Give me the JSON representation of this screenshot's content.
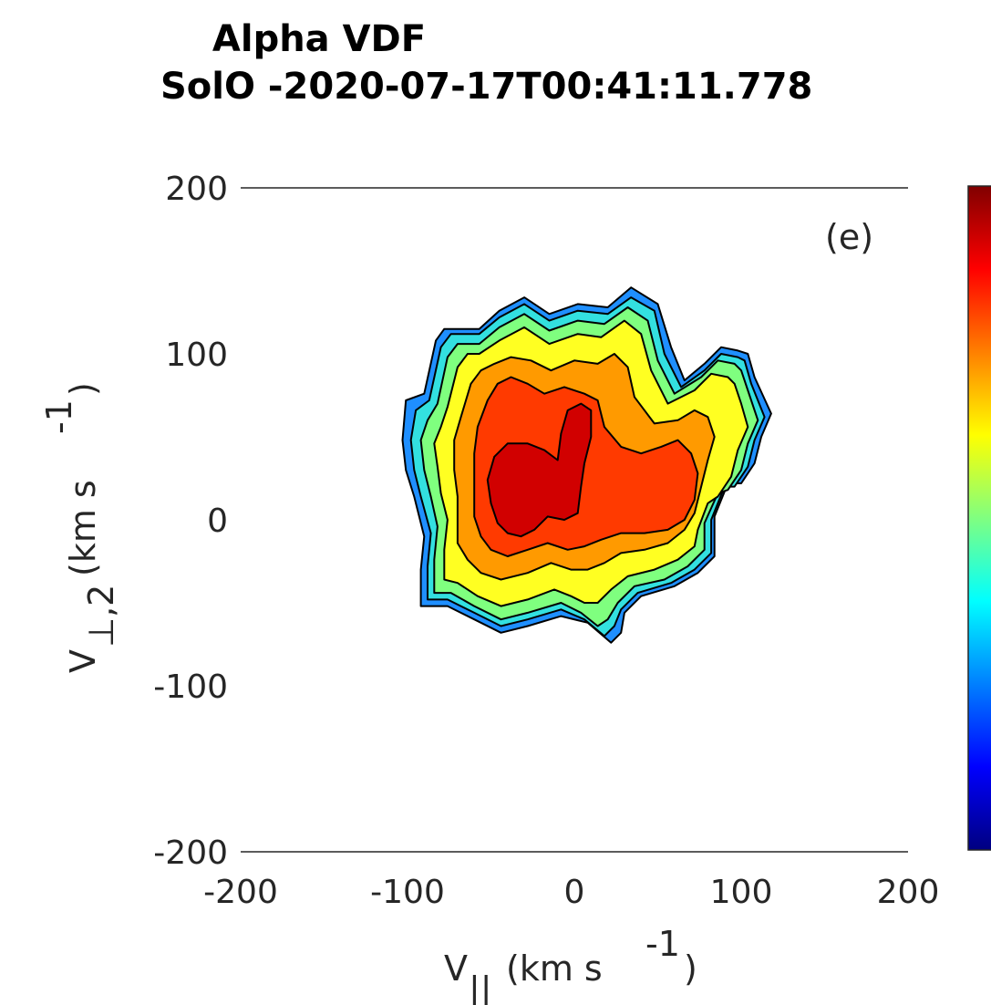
{
  "chart_data": {
    "type": "contour",
    "title": "Alpha VDF",
    "subtitle": "SolO -2020-07-17T00:41:11.778",
    "panel_label": "(e)",
    "xlabel": "V",
    "xlabel_sub": "||",
    "xlabel_unit_pre": "(km s",
    "xlabel_unit_sup": "-1",
    "xlabel_unit_post": ")",
    "ylabel": "V",
    "ylabel_sub": "⊥,2",
    "ylabel_unit_pre": "(km s",
    "ylabel_unit_sup": "-1",
    "ylabel_unit_post": ")",
    "xlim": [
      -200,
      200
    ],
    "ylim": [
      -200,
      200
    ],
    "xticks": [
      "-200",
      "-100",
      "0",
      "100",
      "200"
    ],
    "yticks": [
      "200",
      "100",
      "0",
      "-100",
      "-200"
    ],
    "colormap": "jet",
    "levels": [
      {
        "color": "#1f8fff",
        "contour": [
          [
            -101,
            72
          ],
          [
            -90,
            76
          ],
          [
            -83,
            108
          ],
          [
            -78,
            115
          ],
          [
            -57,
            115
          ],
          [
            -45,
            126
          ],
          [
            -30,
            134
          ],
          [
            -15,
            124
          ],
          [
            2,
            130
          ],
          [
            20,
            128
          ],
          [
            34,
            140
          ],
          [
            50,
            130
          ],
          [
            58,
            104
          ],
          [
            66,
            84
          ],
          [
            78,
            94
          ],
          [
            88,
            104
          ],
          [
            98,
            102
          ],
          [
            104,
            100
          ],
          [
            108,
            86
          ],
          [
            118,
            64
          ],
          [
            112,
            50
          ],
          [
            108,
            34
          ],
          [
            100,
            22
          ],
          [
            92,
            22
          ],
          [
            84,
            2
          ],
          [
            84,
            -22
          ],
          [
            74,
            -32
          ],
          [
            60,
            -40
          ],
          [
            40,
            -46
          ],
          [
            30,
            -56
          ],
          [
            28,
            -68
          ],
          [
            22,
            -74
          ],
          [
            8,
            -62
          ],
          [
            -8,
            -58
          ],
          [
            -28,
            -64
          ],
          [
            -44,
            -68
          ],
          [
            -60,
            -60
          ],
          [
            -76,
            -52
          ],
          [
            -92,
            -52
          ],
          [
            -92,
            -30
          ],
          [
            -90,
            -10
          ],
          [
            -96,
            14
          ],
          [
            -101,
            30
          ],
          [
            -103,
            48
          ]
        ]
      },
      {
        "color": "#33e0e0",
        "contour": [
          [
            -95,
            66
          ],
          [
            -87,
            72
          ],
          [
            -80,
            104
          ],
          [
            -74,
            112
          ],
          [
            -57,
            112
          ],
          [
            -45,
            122
          ],
          [
            -30,
            130
          ],
          [
            -15,
            120
          ],
          [
            2,
            126
          ],
          [
            20,
            124
          ],
          [
            34,
            134
          ],
          [
            48,
            126
          ],
          [
            54,
            100
          ],
          [
            64,
            80
          ],
          [
            78,
            90
          ],
          [
            88,
            100
          ],
          [
            98,
            98
          ],
          [
            102,
            96
          ],
          [
            106,
            82
          ],
          [
            114,
            62
          ],
          [
            108,
            48
          ],
          [
            104,
            32
          ],
          [
            96,
            20
          ],
          [
            90,
            20
          ],
          [
            82,
            0
          ],
          [
            82,
            -20
          ],
          [
            72,
            -30
          ],
          [
            58,
            -38
          ],
          [
            38,
            -44
          ],
          [
            28,
            -54
          ],
          [
            24,
            -64
          ],
          [
            18,
            -70
          ],
          [
            6,
            -60
          ],
          [
            -8,
            -54
          ],
          [
            -28,
            -60
          ],
          [
            -44,
            -64
          ],
          [
            -60,
            -56
          ],
          [
            -76,
            -48
          ],
          [
            -88,
            -48
          ],
          [
            -88,
            -28
          ],
          [
            -86,
            -8
          ],
          [
            -92,
            14
          ],
          [
            -96,
            30
          ],
          [
            -98,
            48
          ]
        ]
      },
      {
        "color": "#7fff7f",
        "contour": [
          [
            -88,
            60
          ],
          [
            -82,
            70
          ],
          [
            -76,
            98
          ],
          [
            -70,
            106
          ],
          [
            -57,
            106
          ],
          [
            -45,
            116
          ],
          [
            -30,
            124
          ],
          [
            -15,
            114
          ],
          [
            2,
            120
          ],
          [
            18,
            118
          ],
          [
            32,
            128
          ],
          [
            44,
            120
          ],
          [
            50,
            96
          ],
          [
            60,
            76
          ],
          [
            76,
            86
          ],
          [
            86,
            96
          ],
          [
            96,
            94
          ],
          [
            100,
            90
          ],
          [
            104,
            78
          ],
          [
            110,
            60
          ],
          [
            104,
            46
          ],
          [
            100,
            30
          ],
          [
            92,
            18
          ],
          [
            86,
            16
          ],
          [
            78,
            -2
          ],
          [
            78,
            -18
          ],
          [
            68,
            -28
          ],
          [
            54,
            -36
          ],
          [
            36,
            -40
          ],
          [
            26,
            -50
          ],
          [
            20,
            -60
          ],
          [
            14,
            -64
          ],
          [
            4,
            -56
          ],
          [
            -8,
            -50
          ],
          [
            -28,
            -56
          ],
          [
            -44,
            -60
          ],
          [
            -60,
            -52
          ],
          [
            -74,
            -44
          ],
          [
            -84,
            -44
          ],
          [
            -84,
            -24
          ],
          [
            -82,
            -4
          ],
          [
            -86,
            14
          ],
          [
            -90,
            30
          ],
          [
            -92,
            48
          ]
        ]
      },
      {
        "color": "#ffff22",
        "contour": [
          [
            -80,
            56
          ],
          [
            -76,
            68
          ],
          [
            -70,
            92
          ],
          [
            -64,
            100
          ],
          [
            -57,
            100
          ],
          [
            -45,
            108
          ],
          [
            -30,
            116
          ],
          [
            -15,
            106
          ],
          [
            2,
            112
          ],
          [
            16,
            110
          ],
          [
            30,
            120
          ],
          [
            40,
            112
          ],
          [
            46,
            90
          ],
          [
            56,
            70
          ],
          [
            72,
            78
          ],
          [
            82,
            88
          ],
          [
            92,
            86
          ],
          [
            96,
            82
          ],
          [
            100,
            70
          ],
          [
            104,
            56
          ],
          [
            98,
            42
          ],
          [
            94,
            26
          ],
          [
            86,
            14
          ],
          [
            80,
            10
          ],
          [
            74,
            -6
          ],
          [
            72,
            -16
          ],
          [
            62,
            -24
          ],
          [
            48,
            -30
          ],
          [
            32,
            -34
          ],
          [
            22,
            -42
          ],
          [
            14,
            -50
          ],
          [
            6,
            -50
          ],
          [
            -2,
            -46
          ],
          [
            -12,
            -42
          ],
          [
            -28,
            -48
          ],
          [
            -44,
            -52
          ],
          [
            -58,
            -46
          ],
          [
            -70,
            -38
          ],
          [
            -78,
            -36
          ],
          [
            -78,
            -18
          ],
          [
            -76,
            0
          ],
          [
            -80,
            16
          ],
          [
            -82,
            32
          ],
          [
            -84,
            46
          ]
        ]
      },
      {
        "color": "#ff9a00",
        "contour": [
          [
            -72,
            48
          ],
          [
            -68,
            62
          ],
          [
            -62,
            82
          ],
          [
            -56,
            90
          ],
          [
            -48,
            94
          ],
          [
            -38,
            98
          ],
          [
            -26,
            96
          ],
          [
            -14,
            90
          ],
          [
            0,
            96
          ],
          [
            14,
            94
          ],
          [
            24,
            100
          ],
          [
            32,
            92
          ],
          [
            36,
            74
          ],
          [
            48,
            58
          ],
          [
            62,
            60
          ],
          [
            72,
            66
          ],
          [
            80,
            62
          ],
          [
            84,
            50
          ],
          [
            80,
            36
          ],
          [
            76,
            20
          ],
          [
            72,
            4
          ],
          [
            66,
            -6
          ],
          [
            56,
            -14
          ],
          [
            42,
            -18
          ],
          [
            28,
            -20
          ],
          [
            18,
            -26
          ],
          [
            8,
            -30
          ],
          [
            -2,
            -30
          ],
          [
            -14,
            -26
          ],
          [
            -28,
            -32
          ],
          [
            -44,
            -36
          ],
          [
            -56,
            -32
          ],
          [
            -64,
            -24
          ],
          [
            -70,
            -14
          ],
          [
            -70,
            0
          ],
          [
            -70,
            14
          ],
          [
            -72,
            30
          ]
        ]
      },
      {
        "color": "#ff3a00",
        "contour": [
          [
            -60,
            40
          ],
          [
            -58,
            56
          ],
          [
            -52,
            72
          ],
          [
            -46,
            82
          ],
          [
            -38,
            86
          ],
          [
            -28,
            82
          ],
          [
            -18,
            76
          ],
          [
            -6,
            80
          ],
          [
            6,
            76
          ],
          [
            14,
            72
          ],
          [
            18,
            56
          ],
          [
            28,
            44
          ],
          [
            40,
            40
          ],
          [
            52,
            44
          ],
          [
            62,
            48
          ],
          [
            70,
            40
          ],
          [
            74,
            28
          ],
          [
            72,
            12
          ],
          [
            66,
            0
          ],
          [
            56,
            -6
          ],
          [
            42,
            -8
          ],
          [
            28,
            -8
          ],
          [
            16,
            -12
          ],
          [
            6,
            -16
          ],
          [
            -4,
            -18
          ],
          [
            -16,
            -14
          ],
          [
            -28,
            -18
          ],
          [
            -40,
            -22
          ],
          [
            -50,
            -18
          ],
          [
            -56,
            -10
          ],
          [
            -60,
            2
          ],
          [
            -60,
            18
          ]
        ]
      },
      {
        "color": "#d10000",
        "contour": [
          [
            -48,
            38
          ],
          [
            -40,
            46
          ],
          [
            -28,
            46
          ],
          [
            -18,
            42
          ],
          [
            -10,
            36
          ],
          [
            -8,
            52
          ],
          [
            -4,
            66
          ],
          [
            4,
            70
          ],
          [
            10,
            66
          ],
          [
            10,
            50
          ],
          [
            6,
            34
          ],
          [
            4,
            20
          ],
          [
            2,
            4
          ],
          [
            -6,
            0
          ],
          [
            -16,
            2
          ],
          [
            -24,
            -6
          ],
          [
            -32,
            -10
          ],
          [
            -40,
            -8
          ],
          [
            -46,
            -2
          ],
          [
            -50,
            10
          ],
          [
            -52,
            24
          ]
        ]
      }
    ]
  }
}
